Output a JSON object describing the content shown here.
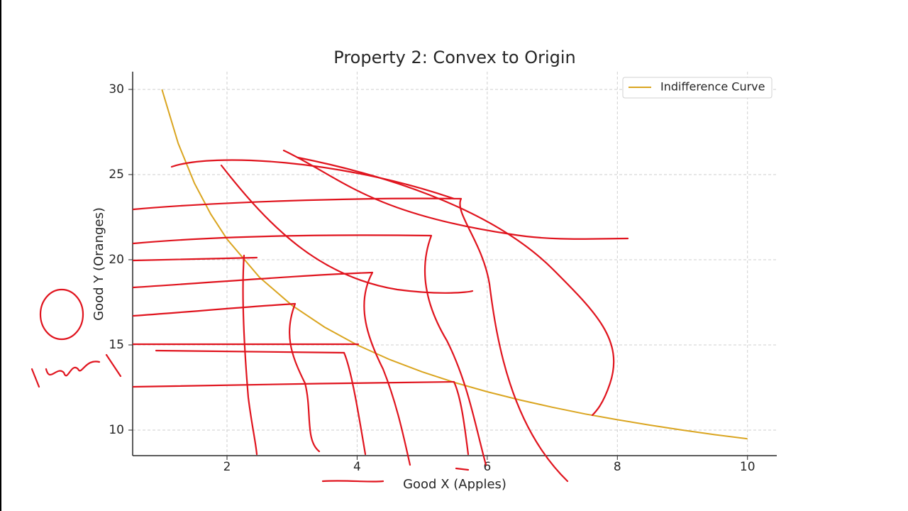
{
  "chart_data": {
    "type": "line",
    "title": "Property 2: Convex to Origin",
    "x_label": "Good X (Apples)",
    "y_label": "Good Y (Oranges)",
    "x": [
      1,
      1.25,
      1.5,
      1.75,
      2,
      2.5,
      3,
      3.5,
      4,
      4.5,
      5,
      5.5,
      6,
      6.5,
      7,
      7.5,
      8,
      8.5,
      9,
      9.5,
      10
    ],
    "series": [
      {
        "name": "Indifference Curve",
        "color": "#daa520",
        "values": [
          30,
          26.83,
          24.49,
          22.68,
          21.21,
          18.97,
          17.32,
          16.04,
          15,
          14.14,
          13.42,
          12.79,
          12.25,
          11.77,
          11.34,
          10.95,
          10.61,
          10.29,
          10,
          9.73,
          9.49
        ]
      }
    ],
    "xlim": [
      0.55,
      10.45
    ],
    "ylim": [
      8.5,
      31.04
    ],
    "xticks": [
      2,
      4,
      6,
      8,
      10
    ],
    "yticks": [
      10,
      15,
      20,
      25,
      30
    ],
    "grid": true,
    "legend": "upper right"
  }
}
